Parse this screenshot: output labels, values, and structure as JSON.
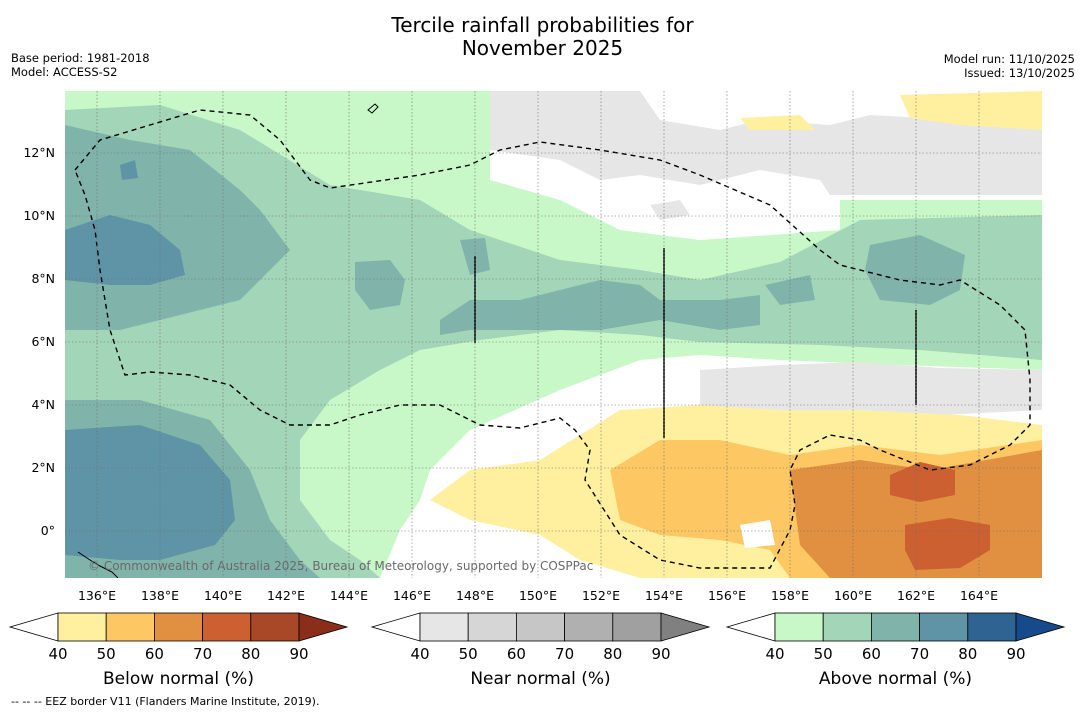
{
  "header": {
    "title_line1": "Tercile rainfall probabilities for",
    "title_line2": "November 2025",
    "base_period": "Base period: 1981-2018",
    "model": "Model: ACCESS-S2",
    "model_run": "Model run: 11/10/2025",
    "issued": "Issued: 13/10/2025"
  },
  "map": {
    "lon_labels": [
      "136°E",
      "138°E",
      "140°E",
      "142°E",
      "144°E",
      "146°E",
      "148°E",
      "150°E",
      "152°E",
      "154°E",
      "156°E",
      "158°E",
      "160°E",
      "162°E",
      "164°E"
    ],
    "lat_labels": [
      "12°N",
      "10°N",
      "8°N",
      "6°N",
      "4°N",
      "2°N",
      "0°"
    ],
    "copyright": "© Commonwealth of Australia 2025, Bureau of Meteorology, supported by COSPPac"
  },
  "colorbars": [
    {
      "label": "Below normal (%)",
      "ticks": [
        "40",
        "50",
        "60",
        "70",
        "80",
        "90"
      ],
      "colors": [
        "#ffffff",
        "#fff0a0",
        "#fdc864",
        "#e09040",
        "#cc6030",
        "#a84826",
        "#8a2e1a"
      ]
    },
    {
      "label": "Near normal (%)",
      "ticks": [
        "40",
        "50",
        "60",
        "70",
        "80",
        "90"
      ],
      "colors": [
        "#ffffff",
        "#e6e6e6",
        "#d6d6d6",
        "#c6c6c6",
        "#b0b0b0",
        "#a0a0a0",
        "#808080"
      ]
    },
    {
      "label": "Above normal (%)",
      "ticks": [
        "40",
        "50",
        "60",
        "70",
        "80",
        "90"
      ],
      "colors": [
        "#ffffff",
        "#c8f8c8",
        "#a3d5b8",
        "#80b4aa",
        "#5e94a6",
        "#2f6492",
        "#164a8a"
      ]
    }
  ],
  "footnote": "--  --  -- EEZ border V11 (Flanders Marine Institute, 2019)."
}
